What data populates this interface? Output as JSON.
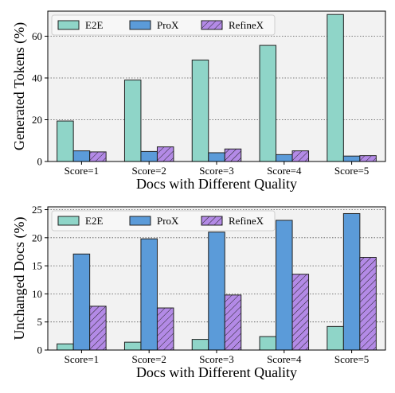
{
  "colors": {
    "E2E": "#8fd5c8",
    "ProX": "#5b9bd9",
    "RefineX": "#b38ae6",
    "plot_bg": "#f2f2f2",
    "grid": "#555555"
  },
  "chart_data": [
    {
      "type": "bar",
      "categories": [
        "Score=1",
        "Score=2",
        "Score=3",
        "Score=4",
        "Score=5"
      ],
      "series": [
        {
          "name": "E2E",
          "values": [
            19.4,
            39.0,
            48.6,
            55.6,
            70.4
          ]
        },
        {
          "name": "ProX",
          "values": [
            5.1,
            4.8,
            4.2,
            3.3,
            2.6
          ]
        },
        {
          "name": "RefineX",
          "values": [
            4.6,
            7.0,
            6.0,
            5.1,
            2.8
          ]
        }
      ],
      "xlabel": "Docs with Different Quality",
      "ylabel": "Generated Tokens (%)",
      "ylim": [
        0,
        72
      ],
      "yticks": [
        0,
        20,
        40,
        60
      ],
      "grid": "horizontal-dotted",
      "legend": "top-left"
    },
    {
      "type": "bar",
      "categories": [
        "Score=1",
        "Score=2",
        "Score=3",
        "Score=4",
        "Score=5"
      ],
      "series": [
        {
          "name": "E2E",
          "values": [
            1.1,
            1.4,
            1.9,
            2.4,
            4.2
          ]
        },
        {
          "name": "ProX",
          "values": [
            17.1,
            19.8,
            21.0,
            23.1,
            24.3
          ]
        },
        {
          "name": "RefineX",
          "values": [
            7.8,
            7.5,
            9.8,
            13.5,
            16.5
          ]
        }
      ],
      "xlabel": "Docs with Different Quality",
      "ylabel": "Unchanged Docs (%)",
      "ylim": [
        0,
        25.5
      ],
      "yticks": [
        0,
        5,
        10,
        15,
        20,
        25
      ],
      "grid": "horizontal-dotted",
      "legend": "top-left"
    }
  ]
}
